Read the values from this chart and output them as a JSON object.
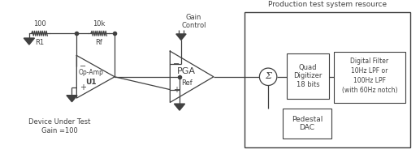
{
  "title": "Production test system resource",
  "background_color": "#ffffff",
  "line_color": "#404040",
  "labels": {
    "r1_val": "100",
    "r1_name": "R1",
    "rf_val": "10k",
    "rf_name": "Rf",
    "gain_control": "Gain\nControl",
    "pga": "PGA",
    "ref": "Ref",
    "opamp_name": "Op-Amp",
    "opamp_u1": "U1",
    "dut": "Device Under Test\nGain =100",
    "quad_dig": "Quad\nDigitizer\n18 bits",
    "dig_filter": "Digital Filter\n10Hz LPF or\n100Hz LPF\n(with 60Hz notch)",
    "pedestal_dac": "Pedestal\nDAC",
    "sigma": "Σ",
    "minus": "−",
    "plus": "+"
  },
  "figsize": [
    5.17,
    2.0
  ],
  "dpi": 100
}
